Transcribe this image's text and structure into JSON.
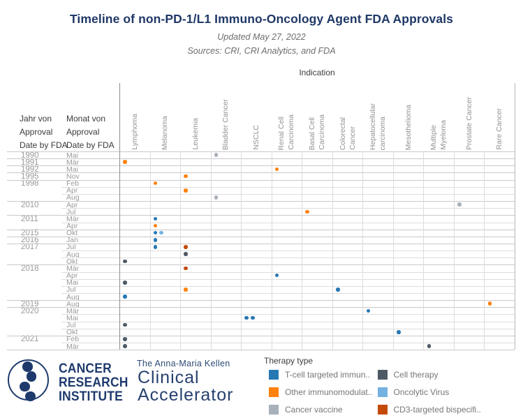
{
  "header": {
    "title": "Timeline of non-PD-1/L1 Immuno-Oncology Agent FDA Approvals",
    "subtitle_updated": "Updated May 27, 2022",
    "subtitle_sources": "Sources: CRI, CRI Analytics, and FDA"
  },
  "chart_data": {
    "type": "scatter",
    "title": "Timeline of non-PD-1/L1 Immuno-Oncology Agent FDA Approvals",
    "column_axis_title": "Indication",
    "row_axis": {
      "year_label_lines": [
        "Jahr von",
        "Approval",
        "Date by FDA"
      ],
      "month_label_lines": [
        "Monat von",
        "Approval",
        "Date by FDA"
      ]
    },
    "columns": [
      {
        "label": "Lymphoma",
        "lines": [
          "Lymphoma"
        ]
      },
      {
        "label": "Melanoma",
        "lines": [
          "Melanoma"
        ]
      },
      {
        "label": "Leukemia",
        "lines": [
          "Leukemia"
        ]
      },
      {
        "label": "Bladder Cancer",
        "lines": [
          "Bladder Cancer"
        ]
      },
      {
        "label": "NSCLC",
        "lines": [
          "NSCLC"
        ]
      },
      {
        "label": "Renal Cell Carcinoma",
        "lines": [
          "Renal Cell",
          "Carcinoma"
        ]
      },
      {
        "label": "Basal Cell Carcinoma",
        "lines": [
          "Basal Cell",
          "Carcinoma"
        ]
      },
      {
        "label": "Colorectal Cancer",
        "lines": [
          "Colorectal",
          "Cancer"
        ]
      },
      {
        "label": "Hepatocellular carcinoma",
        "lines": [
          "Hepatocellular",
          "carcinoma"
        ]
      },
      {
        "label": "Mesothelioma",
        "lines": [
          "Mesothelioma"
        ]
      },
      {
        "label": "Multiple Myeloma",
        "lines": [
          "Multiple",
          "Myeloma"
        ]
      },
      {
        "label": "Prostate Cancer",
        "lines": [
          "Prostate Cancer"
        ]
      },
      {
        "label": "Rare Cancer",
        "lines": [
          "Rare Cancer"
        ]
      }
    ],
    "rows": [
      {
        "year": "1990",
        "month": "Mai"
      },
      {
        "year": "1991",
        "month": "Mär"
      },
      {
        "year": "1992",
        "month": "Mai"
      },
      {
        "year": "1995",
        "month": "Nov"
      },
      {
        "year": "1998",
        "month": "Feb"
      },
      {
        "year": "1998",
        "month": "Apr"
      },
      {
        "year": "1998",
        "month": "Aug"
      },
      {
        "year": "2010",
        "month": "Apr"
      },
      {
        "year": "2010",
        "month": "Jul"
      },
      {
        "year": "2011",
        "month": "Mär"
      },
      {
        "year": "2011",
        "month": "Apr"
      },
      {
        "year": "2015",
        "month": "Okt"
      },
      {
        "year": "2016",
        "month": "Jan"
      },
      {
        "year": "2017",
        "month": "Jul"
      },
      {
        "year": "2017",
        "month": "Aug"
      },
      {
        "year": "2017",
        "month": "Okt"
      },
      {
        "year": "2018",
        "month": "Mär"
      },
      {
        "year": "2018",
        "month": "Apr"
      },
      {
        "year": "2018",
        "month": "Mai"
      },
      {
        "year": "2018",
        "month": "Jul"
      },
      {
        "year": "2018",
        "month": "Aug"
      },
      {
        "year": "2019",
        "month": "Aug"
      },
      {
        "year": "2020",
        "month": "Mär"
      },
      {
        "year": "2020",
        "month": "Mai"
      },
      {
        "year": "2020",
        "month": "Jul"
      },
      {
        "year": "2020",
        "month": "Okt"
      },
      {
        "year": "2021",
        "month": "Feb"
      },
      {
        "year": "2021",
        "month": "Mär"
      }
    ],
    "therapy_types": {
      "tcell": {
        "label": "T-cell targeted immun..",
        "color": "#2678b2"
      },
      "other_immuno": {
        "label": "Other immunomodulat..",
        "color": "#fd810c"
      },
      "vaccine": {
        "label": "Cancer vaccine",
        "color": "#a8b0ba"
      },
      "cell": {
        "label": "Cell therapy",
        "color": "#4d5a66"
      },
      "oncolytic": {
        "label": "Oncolytic Virus",
        "color": "#73b1e0"
      },
      "cd3": {
        "label": "CD3-targeted bispecifi..",
        "color": "#c44a0b"
      }
    },
    "approvals": [
      {
        "year": "1990",
        "month": "Mai",
        "indication": "Bladder Cancer",
        "therapies": [
          "vaccine"
        ]
      },
      {
        "year": "1991",
        "month": "Mär",
        "indication": "Lymphoma",
        "therapies": [
          "other_immuno"
        ]
      },
      {
        "year": "1992",
        "month": "Mai",
        "indication": "Renal Cell Carcinoma",
        "therapies": [
          "other_immuno"
        ]
      },
      {
        "year": "1995",
        "month": "Nov",
        "indication": "Leukemia",
        "therapies": [
          "other_immuno"
        ]
      },
      {
        "year": "1998",
        "month": "Feb",
        "indication": "Melanoma",
        "therapies": [
          "other_immuno"
        ]
      },
      {
        "year": "1998",
        "month": "Apr",
        "indication": "Leukemia",
        "therapies": [
          "other_immuno"
        ]
      },
      {
        "year": "1998",
        "month": "Aug",
        "indication": "Bladder Cancer",
        "therapies": [
          "vaccine"
        ]
      },
      {
        "year": "2010",
        "month": "Apr",
        "indication": "Prostate Cancer",
        "therapies": [
          "vaccine"
        ]
      },
      {
        "year": "2010",
        "month": "Jul",
        "indication": "Basal Cell Carcinoma",
        "therapies": [
          "other_immuno"
        ]
      },
      {
        "year": "2011",
        "month": "Mär",
        "indication": "Melanoma",
        "therapies": [
          "tcell"
        ]
      },
      {
        "year": "2011",
        "month": "Apr",
        "indication": "Melanoma",
        "therapies": [
          "other_immuno"
        ]
      },
      {
        "year": "2015",
        "month": "Okt",
        "indication": "Melanoma",
        "therapies": [
          "tcell",
          "oncolytic"
        ]
      },
      {
        "year": "2016",
        "month": "Jan",
        "indication": "Melanoma",
        "therapies": [
          "tcell"
        ]
      },
      {
        "year": "2017",
        "month": "Jul",
        "indication": "Melanoma",
        "therapies": [
          "tcell"
        ]
      },
      {
        "year": "2017",
        "month": "Jul",
        "indication": "Leukemia",
        "therapies": [
          "cd3"
        ]
      },
      {
        "year": "2017",
        "month": "Aug",
        "indication": "Leukemia",
        "therapies": [
          "cell"
        ]
      },
      {
        "year": "2017",
        "month": "Okt",
        "indication": "Lymphoma",
        "therapies": [
          "cell"
        ]
      },
      {
        "year": "2018",
        "month": "Mär",
        "indication": "Leukemia",
        "therapies": [
          "cd3"
        ]
      },
      {
        "year": "2018",
        "month": "Apr",
        "indication": "Renal Cell Carcinoma",
        "therapies": [
          "tcell"
        ]
      },
      {
        "year": "2018",
        "month": "Mai",
        "indication": "Lymphoma",
        "therapies": [
          "cell"
        ]
      },
      {
        "year": "2018",
        "month": "Jul",
        "indication": "Leukemia",
        "therapies": [
          "other_immuno"
        ]
      },
      {
        "year": "2018",
        "month": "Jul",
        "indication": "Colorectal Cancer",
        "therapies": [
          "tcell"
        ]
      },
      {
        "year": "2018",
        "month": "Aug",
        "indication": "Lymphoma",
        "therapies": [
          "tcell"
        ]
      },
      {
        "year": "2019",
        "month": "Aug",
        "indication": "Rare Cancer",
        "therapies": [
          "other_immuno"
        ]
      },
      {
        "year": "2020",
        "month": "Mär",
        "indication": "Hepatocellular carcinoma",
        "therapies": [
          "tcell"
        ]
      },
      {
        "year": "2020",
        "month": "Mai",
        "indication": "NSCLC",
        "therapies": [
          "tcell",
          "tcell"
        ]
      },
      {
        "year": "2020",
        "month": "Jul",
        "indication": "Lymphoma",
        "therapies": [
          "cell"
        ]
      },
      {
        "year": "2020",
        "month": "Okt",
        "indication": "Mesothelioma",
        "therapies": [
          "tcell"
        ]
      },
      {
        "year": "2021",
        "month": "Feb",
        "indication": "Lymphoma",
        "therapies": [
          "cell"
        ]
      },
      {
        "year": "2021",
        "month": "Mär",
        "indication": "Lymphoma",
        "therapies": [
          "cell"
        ]
      },
      {
        "year": "2021",
        "month": "Mär",
        "indication": "Multiple Myeloma",
        "therapies": [
          "cell"
        ]
      }
    ]
  },
  "legend": {
    "title": "Therapy type",
    "columns": [
      [
        "tcell",
        "other_immuno",
        "vaccine"
      ],
      [
        "cell",
        "oncolytic",
        "cd3"
      ]
    ]
  },
  "logo": {
    "org_lines": [
      "CANCER",
      "RESEARCH",
      "INSTITUTE"
    ],
    "program_small": "The Anna-Maria Kellen",
    "program_line1": "Clinical",
    "program_line2": "Accelerator"
  }
}
